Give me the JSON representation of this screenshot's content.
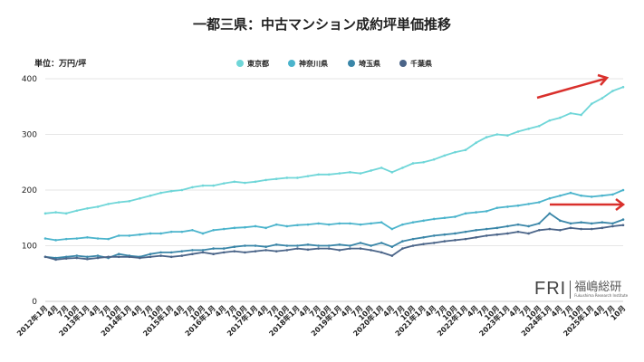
{
  "chart_data": {
    "type": "line",
    "title": "一都三県：中古マンション成約坪単価推移",
    "unit_label": "単位：万円/坪",
    "ylim": [
      0,
      400
    ],
    "yticks": [
      0,
      100,
      200,
      300,
      400
    ],
    "grid": true,
    "legend_position": "top-center",
    "categories": [
      "2012年1月",
      "4月",
      "7月",
      "10月",
      "2013年1月",
      "4月",
      "7月",
      "10月",
      "2014年1月",
      "4月",
      "7月",
      "10月",
      "2015年1月",
      "4月",
      "7月",
      "10月",
      "2016年1月",
      "4月",
      "7月",
      "10月",
      "2017年1月",
      "4月",
      "7月",
      "10月",
      "2018年1月",
      "4月",
      "7月",
      "10月",
      "2019年1月",
      "4月",
      "7月",
      "10月",
      "2020年1月",
      "4月",
      "7月",
      "10月",
      "2021年1月",
      "4月",
      "7月",
      "10月",
      "2022年1月",
      "4月",
      "7月",
      "10月",
      "2023年1月",
      "4月",
      "7月",
      "10月",
      "2024年1月",
      "4月",
      "7月",
      "10月",
      "2025年1月",
      "4月",
      "7月",
      "10月"
    ],
    "series": [
      {
        "name": "東京都",
        "color": "#6fd6d8",
        "values": [
          158,
          160,
          158,
          163,
          167,
          170,
          175,
          178,
          180,
          185,
          190,
          195,
          198,
          200,
          205,
          208,
          208,
          212,
          215,
          213,
          215,
          218,
          220,
          222,
          222,
          225,
          228,
          228,
          230,
          232,
          230,
          235,
          240,
          232,
          240,
          248,
          250,
          255,
          262,
          268,
          272,
          285,
          295,
          300,
          298,
          305,
          310,
          315,
          325,
          330,
          338,
          335,
          355,
          365,
          378,
          385
        ]
      },
      {
        "name": "神奈川県",
        "color": "#4bb4cc",
        "values": [
          113,
          110,
          112,
          113,
          115,
          113,
          112,
          118,
          118,
          120,
          122,
          122,
          125,
          125,
          128,
          122,
          128,
          130,
          132,
          133,
          135,
          132,
          138,
          135,
          137,
          138,
          140,
          138,
          140,
          140,
          138,
          140,
          142,
          130,
          138,
          142,
          145,
          148,
          150,
          152,
          158,
          160,
          162,
          168,
          170,
          172,
          175,
          178,
          185,
          190,
          195,
          190,
          188,
          190,
          192,
          200
        ]
      },
      {
        "name": "埼玉県",
        "color": "#3a86a8",
        "values": [
          80,
          78,
          80,
          82,
          80,
          82,
          78,
          85,
          82,
          80,
          85,
          88,
          88,
          90,
          92,
          92,
          95,
          95,
          98,
          100,
          100,
          98,
          102,
          100,
          100,
          102,
          100,
          100,
          102,
          100,
          105,
          100,
          105,
          98,
          108,
          112,
          115,
          118,
          120,
          122,
          125,
          128,
          130,
          132,
          135,
          138,
          135,
          140,
          158,
          145,
          140,
          142,
          140,
          142,
          140,
          147
        ]
      },
      {
        "name": "千葉県",
        "color": "#4a6488",
        "values": [
          80,
          75,
          77,
          78,
          76,
          78,
          80,
          80,
          80,
          78,
          80,
          82,
          80,
          82,
          85,
          88,
          85,
          88,
          90,
          88,
          90,
          92,
          90,
          92,
          95,
          93,
          95,
          95,
          92,
          95,
          95,
          92,
          88,
          82,
          95,
          100,
          103,
          105,
          108,
          110,
          112,
          115,
          118,
          120,
          122,
          125,
          122,
          128,
          130,
          128,
          132,
          130,
          130,
          132,
          135,
          137
        ]
      }
    ],
    "annotations": [
      {
        "type": "arrow",
        "color": "#d9302c",
        "target_series": "東京都",
        "meaning": "rising"
      },
      {
        "type": "arrow",
        "color": "#d9302c",
        "target_series": "神奈川県",
        "meaning": "flat"
      }
    ]
  },
  "logo": {
    "mark": "FRI",
    "name_jp": "福嶋総研",
    "name_en": "Fukushima Research Institute"
  }
}
